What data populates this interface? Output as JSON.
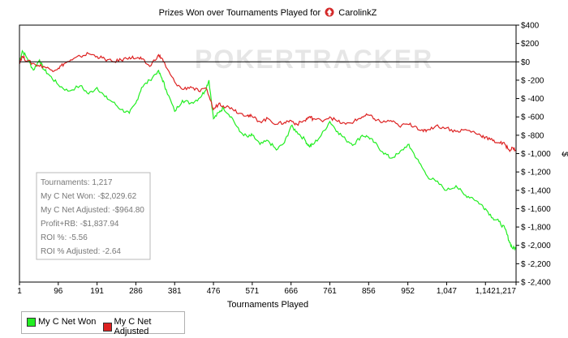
{
  "chart_data": {
    "type": "line",
    "title": "Prizes Won over Tournaments Played for",
    "player": "CarolinkZ",
    "watermark": "POKERTRACKER",
    "xlabel": "Tournaments Played",
    "ylabel": "$",
    "xlim": [
      1,
      1217
    ],
    "ylim": [
      -2400,
      400
    ],
    "x_ticks": [
      1,
      96,
      191,
      286,
      381,
      476,
      571,
      666,
      761,
      856,
      952,
      1047,
      1142,
      1217
    ],
    "x_tick_labels": [
      "1",
      "96",
      "191",
      "286",
      "381",
      "476",
      "571",
      "666",
      "761",
      "856",
      "952",
      "1,047",
      "1,142",
      "1,217"
    ],
    "y_ticks": [
      400,
      200,
      0,
      -200,
      -400,
      -600,
      -800,
      -1000,
      -1200,
      -1400,
      -1600,
      -1800,
      -2000,
      -2200,
      -2400
    ],
    "y_tick_labels": [
      "$400",
      "$200",
      "$0",
      "$ -200",
      "$ -400",
      "$ -600",
      "$ -800",
      "$ -1,000",
      "$ -1,200",
      "$ -1,400",
      "$ -1,600",
      "$ -1,800",
      "$ -2,000",
      "$ -2,200",
      "$ -2,400"
    ],
    "series": [
      {
        "name": "My C Net Won",
        "color": "#22ee22",
        "points": [
          [
            1,
            0
          ],
          [
            8,
            120
          ],
          [
            20,
            40
          ],
          [
            35,
            -90
          ],
          [
            50,
            20
          ],
          [
            60,
            -80
          ],
          [
            75,
            -150
          ],
          [
            96,
            -250
          ],
          [
            120,
            -320
          ],
          [
            150,
            -260
          ],
          [
            170,
            -350
          ],
          [
            191,
            -280
          ],
          [
            210,
            -380
          ],
          [
            230,
            -440
          ],
          [
            250,
            -520
          ],
          [
            270,
            -560
          ],
          [
            286,
            -450
          ],
          [
            300,
            -280
          ],
          [
            320,
            -200
          ],
          [
            340,
            -100
          ],
          [
            350,
            -180
          ],
          [
            360,
            -300
          ],
          [
            381,
            -540
          ],
          [
            400,
            -420
          ],
          [
            420,
            -450
          ],
          [
            440,
            -400
          ],
          [
            455,
            -320
          ],
          [
            465,
            -200
          ],
          [
            476,
            -620
          ],
          [
            490,
            -550
          ],
          [
            500,
            -500
          ],
          [
            520,
            -600
          ],
          [
            540,
            -760
          ],
          [
            560,
            -820
          ],
          [
            571,
            -800
          ],
          [
            590,
            -900
          ],
          [
            610,
            -860
          ],
          [
            630,
            -960
          ],
          [
            650,
            -880
          ],
          [
            666,
            -700
          ],
          [
            680,
            -760
          ],
          [
            700,
            -850
          ],
          [
            710,
            -920
          ],
          [
            720,
            -900
          ],
          [
            740,
            -800
          ],
          [
            761,
            -650
          ],
          [
            780,
            -760
          ],
          [
            800,
            -850
          ],
          [
            820,
            -900
          ],
          [
            840,
            -800
          ],
          [
            856,
            -820
          ],
          [
            870,
            -880
          ],
          [
            890,
            -980
          ],
          [
            910,
            -1050
          ],
          [
            930,
            -1000
          ],
          [
            952,
            -900
          ],
          [
            960,
            -950
          ],
          [
            980,
            -1100
          ],
          [
            1000,
            -1250
          ],
          [
            1020,
            -1300
          ],
          [
            1047,
            -1400
          ],
          [
            1070,
            -1350
          ],
          [
            1090,
            -1450
          ],
          [
            1110,
            -1480
          ],
          [
            1130,
            -1550
          ],
          [
            1142,
            -1600
          ],
          [
            1160,
            -1700
          ],
          [
            1175,
            -1740
          ],
          [
            1190,
            -1820
          ],
          [
            1200,
            -1950
          ],
          [
            1208,
            -2030
          ],
          [
            1217,
            -2029.62
          ]
        ]
      },
      {
        "name": "My C Net Adjusted",
        "color": "#dd2222",
        "points": [
          [
            1,
            0
          ],
          [
            8,
            60
          ],
          [
            20,
            10
          ],
          [
            40,
            -30
          ],
          [
            60,
            -50
          ],
          [
            80,
            -90
          ],
          [
            96,
            -70
          ],
          [
            110,
            -20
          ],
          [
            130,
            20
          ],
          [
            150,
            60
          ],
          [
            170,
            90
          ],
          [
            191,
            60
          ],
          [
            210,
            30
          ],
          [
            230,
            0
          ],
          [
            250,
            20
          ],
          [
            270,
            50
          ],
          [
            286,
            40
          ],
          [
            300,
            30
          ],
          [
            320,
            -50
          ],
          [
            340,
            70
          ],
          [
            350,
            40
          ],
          [
            360,
            -60
          ],
          [
            381,
            -220
          ],
          [
            400,
            -300
          ],
          [
            420,
            -270
          ],
          [
            440,
            -320
          ],
          [
            460,
            -300
          ],
          [
            476,
            -520
          ],
          [
            490,
            -450
          ],
          [
            500,
            -480
          ],
          [
            520,
            -500
          ],
          [
            540,
            -560
          ],
          [
            560,
            -580
          ],
          [
            571,
            -600
          ],
          [
            590,
            -650
          ],
          [
            610,
            -620
          ],
          [
            630,
            -680
          ],
          [
            650,
            -660
          ],
          [
            666,
            -640
          ],
          [
            680,
            -680
          ],
          [
            700,
            -640
          ],
          [
            710,
            -600
          ],
          [
            720,
            -620
          ],
          [
            740,
            -640
          ],
          [
            761,
            -600
          ],
          [
            780,
            -650
          ],
          [
            800,
            -680
          ],
          [
            820,
            -650
          ],
          [
            840,
            -600
          ],
          [
            856,
            -580
          ],
          [
            870,
            -620
          ],
          [
            890,
            -660
          ],
          [
            910,
            -640
          ],
          [
            930,
            -700
          ],
          [
            952,
            -680
          ],
          [
            970,
            -700
          ],
          [
            990,
            -760
          ],
          [
            1000,
            -740
          ],
          [
            1020,
            -700
          ],
          [
            1047,
            -720
          ],
          [
            1070,
            -760
          ],
          [
            1090,
            -740
          ],
          [
            1110,
            -760
          ],
          [
            1130,
            -800
          ],
          [
            1142,
            -820
          ],
          [
            1160,
            -860
          ],
          [
            1175,
            -880
          ],
          [
            1190,
            -900
          ],
          [
            1200,
            -960
          ],
          [
            1210,
            -940
          ],
          [
            1217,
            -964.8
          ]
        ]
      }
    ],
    "stats_box": [
      {
        "label": "Tournaments",
        "value": "1,217"
      },
      {
        "label": "My C Net Won",
        "value": "-$2,029.62"
      },
      {
        "label": "My C Net Adjusted",
        "value": "-$964.80"
      },
      {
        "label": "Profit+RB",
        "value": "-$1,837.94"
      },
      {
        "label": "ROI %",
        "value": "-5.56"
      },
      {
        "label": "ROI % Adjusted",
        "value": "-2.64"
      }
    ],
    "legend_placement": "bottom-left",
    "grid": false
  }
}
